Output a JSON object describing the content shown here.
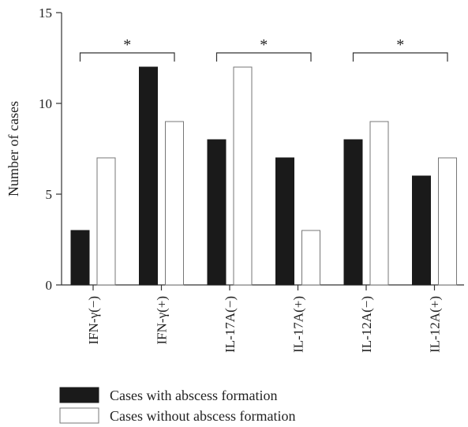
{
  "chart_data": {
    "type": "bar",
    "title": "",
    "xlabel": "",
    "ylabel": "Number of cases",
    "ylim": [
      0,
      15
    ],
    "yticks": [
      0,
      5,
      10,
      15
    ],
    "categories": [
      "IFN-γ(−)",
      "IFN-γ(+)",
      "IL-17A(−)",
      "IL-17A(+)",
      "IL-12A(−)",
      "IL-12A(+)"
    ],
    "series": [
      {
        "name": "Cases with abscess formation",
        "color": "#1a1a1a",
        "values": [
          3,
          12,
          8,
          7,
          8,
          6
        ]
      },
      {
        "name": "Cases without abscess formation",
        "color": "#ffffff",
        "values": [
          7,
          9,
          12,
          3,
          9,
          7
        ]
      }
    ],
    "significance": [
      {
        "from": 0,
        "to": 1,
        "label": "*"
      },
      {
        "from": 2,
        "to": 3,
        "label": "*"
      },
      {
        "from": 4,
        "to": 5,
        "label": "*"
      }
    ],
    "legend_position": "bottom-left",
    "grid": false
  }
}
